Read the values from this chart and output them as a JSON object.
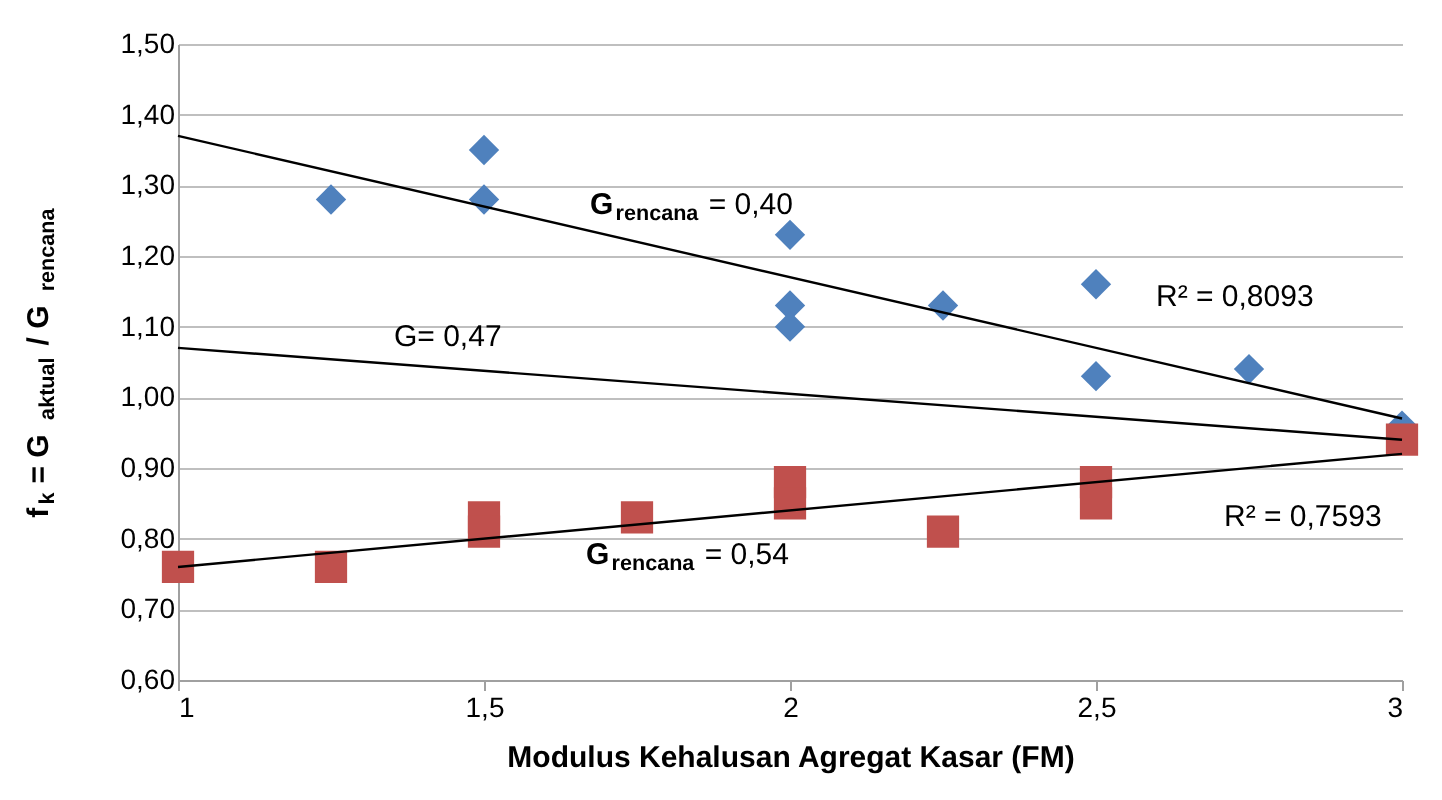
{
  "chart_data": {
    "type": "scatter",
    "xlabel": "Modulus Kehalusan Agregat Kasar (FM)",
    "ylabel": "f$_{k}$ = G$_{aktual}$ / G$_{rencana}$",
    "xlim": [
      1,
      3
    ],
    "xticks": [
      1,
      {
        "value": 1.5,
        "label": "1,5"
      },
      2,
      {
        "value": 2.5,
        "label": "2,5"
      },
      3
    ],
    "ylim": [
      0.6,
      1.5
    ],
    "yticks": [
      {
        "value": 0.6,
        "label": "0,60"
      },
      {
        "value": 0.7,
        "label": "0,70"
      },
      {
        "value": 0.8,
        "label": "0,80"
      },
      {
        "value": 0.9,
        "label": "0,90"
      },
      {
        "value": 1.0,
        "label": "1,00"
      },
      {
        "value": 1.1,
        "label": "1,10"
      },
      {
        "value": 1.2,
        "label": "1,20"
      },
      {
        "value": 1.3,
        "label": "1,30"
      },
      {
        "value": 1.4,
        "label": "1,40"
      },
      {
        "value": 1.5,
        "label": "1,50"
      }
    ],
    "grid": "y",
    "series": [
      {
        "marker": "diamond",
        "color": "#4f81bd",
        "x": [
          1.25,
          1.5,
          1.5,
          2,
          2,
          2,
          2.25,
          2.5,
          2.5,
          2.75,
          3
        ],
        "values": [
          1.28,
          1.35,
          1.28,
          1.23,
          1.13,
          1.1,
          1.13,
          1.16,
          1.03,
          1.04,
          0.96
        ]
      },
      {
        "marker": "square",
        "color": "#c0504d",
        "x": [
          1,
          1.25,
          1.5,
          1.5,
          1.75,
          2,
          2,
          2.25,
          2.5,
          2.5,
          3
        ],
        "values": [
          0.76,
          0.76,
          0.83,
          0.81,
          0.83,
          0.88,
          0.85,
          0.81,
          0.88,
          0.85,
          0.94
        ]
      },
      {
        "type": "line",
        "color": "#000000",
        "x": [
          1,
          3
        ],
        "values": [
          1.37,
          0.97
        ]
      },
      {
        "type": "line",
        "color": "#000000",
        "x": [
          1,
          3
        ],
        "values": [
          1.07,
          0.94
        ]
      },
      {
        "type": "line",
        "color": "#000000",
        "x": [
          1,
          3
        ],
        "values": [
          0.76,
          0.92
        ]
      }
    ],
    "annotations": [
      "G$_{rencana}$= 0,40",
      "R² = 0,8093",
      "G= 0,47",
      "G$_{rencana}$= 0,54",
      "R² = 0,7593"
    ]
  }
}
